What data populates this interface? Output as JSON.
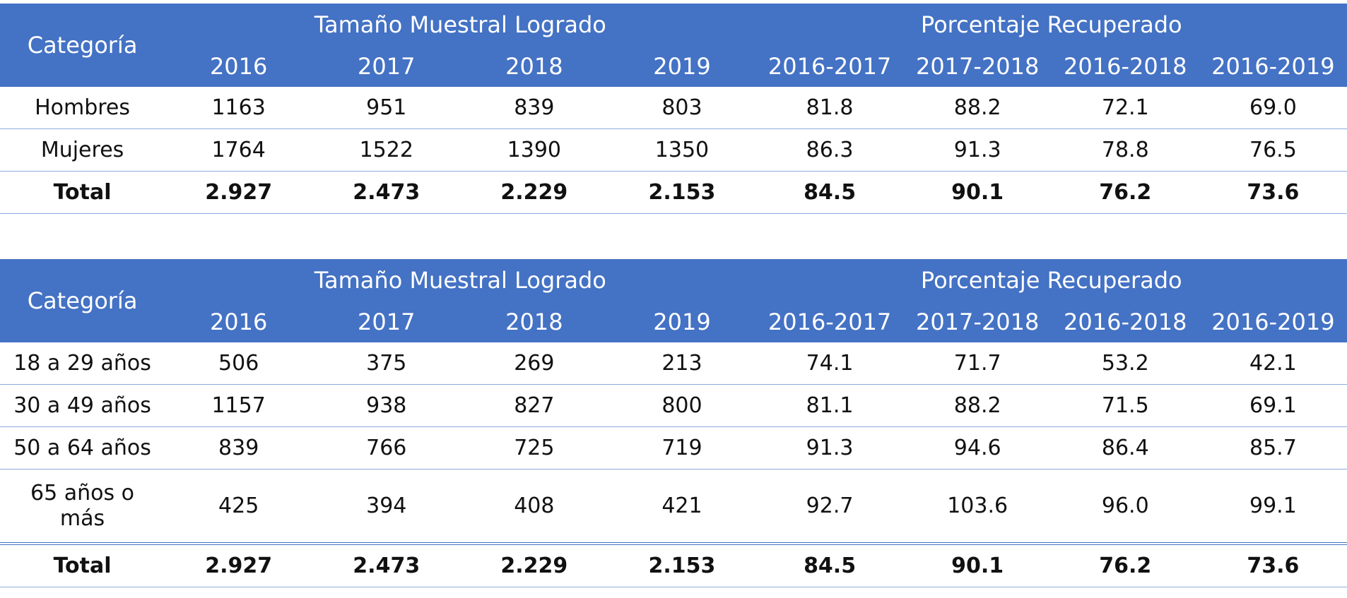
{
  "tables": [
    {
      "header": {
        "category_label": "Categoría",
        "group_sample": "Tamaño Muestral Logrado",
        "group_percent": "Porcentaje Recuperado",
        "columns": [
          "2016",
          "2017",
          "2018",
          "2019",
          "2016-2017",
          "2017-2018",
          "2016-2018",
          "2016-2019"
        ]
      },
      "rows": [
        {
          "label": "Hombres",
          "values": [
            "1163",
            "951",
            "839",
            "803",
            "81.8",
            "88.2",
            "72.1",
            "69.0"
          ]
        },
        {
          "label": "Mujeres",
          "values": [
            "1764",
            "1522",
            "1390",
            "1350",
            "86.3",
            "91.3",
            "78.8",
            "76.5"
          ]
        }
      ],
      "total": {
        "label": "Total",
        "values": [
          "2.927",
          "2.473",
          "2.229",
          "2.153",
          "84.5",
          "90.1",
          "76.2",
          "73.6"
        ]
      }
    },
    {
      "header": {
        "category_label": "Categoría",
        "group_sample": "Tamaño Muestral Logrado",
        "group_percent": "Porcentaje Recuperado",
        "columns": [
          "2016",
          "2017",
          "2018",
          "2019",
          "2016-2017",
          "2017-2018",
          "2016-2018",
          "2016-2019"
        ]
      },
      "rows": [
        {
          "label": "18 a 29 años",
          "values": [
            "506",
            "375",
            "269",
            "213",
            "74.1",
            "71.7",
            "53.2",
            "42.1"
          ]
        },
        {
          "label": "30 a 49 años",
          "values": [
            "1157",
            "938",
            "827",
            "800",
            "81.1",
            "88.2",
            "71.5",
            "69.1"
          ]
        },
        {
          "label": "50 a 64 años",
          "values": [
            "839",
            "766",
            "725",
            "719",
            "91.3",
            "94.6",
            "86.4",
            "85.7"
          ]
        },
        {
          "label": "65 años o más",
          "values": [
            "425",
            "394",
            "408",
            "421",
            "92.7",
            "103.6",
            "96.0",
            "99.1"
          ]
        }
      ],
      "total": {
        "label": "Total",
        "values": [
          "2.927",
          "2.473",
          "2.229",
          "2.153",
          "84.5",
          "90.1",
          "76.2",
          "73.6"
        ]
      }
    }
  ]
}
